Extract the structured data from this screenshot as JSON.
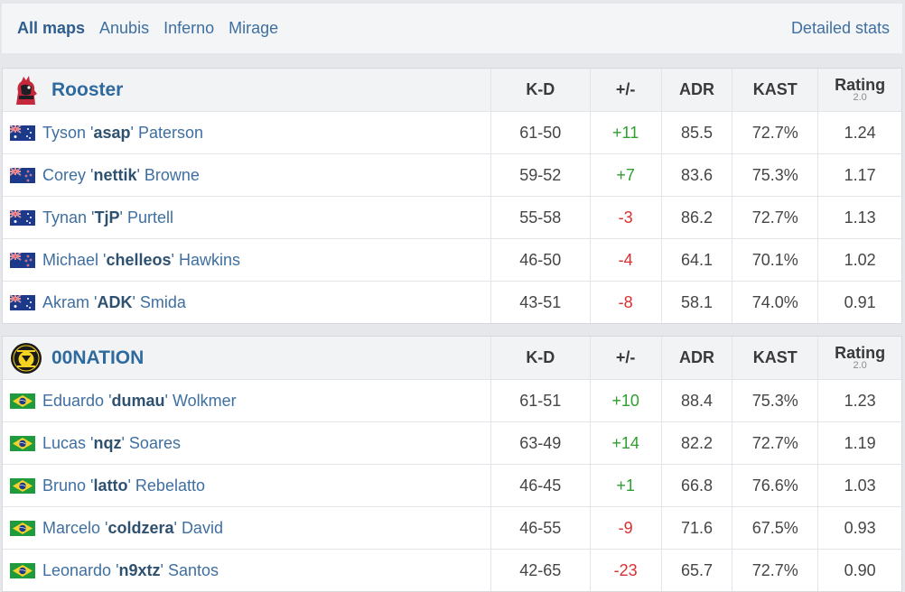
{
  "nav": {
    "tabs": [
      {
        "label": "All maps",
        "active": true
      },
      {
        "label": "Anubis",
        "active": false
      },
      {
        "label": "Inferno",
        "active": false
      },
      {
        "label": "Mirage",
        "active": false
      }
    ],
    "detailed_stats": "Detailed stats"
  },
  "columns": {
    "kd": "K-D",
    "pm": "+/-",
    "adr": "ADR",
    "kast": "KAST",
    "rating": "Rating",
    "rating_version": "2.0"
  },
  "colors": {
    "positive": "#2ea02e",
    "negative": "#d83030",
    "link": "#3f6fa0"
  },
  "teams": [
    {
      "name": "Rooster",
      "logo_icon": "rooster-logo",
      "players": [
        {
          "first": "Tyson",
          "nick": "asap",
          "last": "Paterson",
          "flag": "australia-flag",
          "kd": "61-50",
          "pm": "+11",
          "adr": "85.5",
          "kast": "72.7%",
          "rating": "1.24"
        },
        {
          "first": "Corey",
          "nick": "nettik",
          "last": "Browne",
          "flag": "new-zealand-flag",
          "kd": "59-52",
          "pm": "+7",
          "adr": "83.6",
          "kast": "75.3%",
          "rating": "1.17"
        },
        {
          "first": "Tynan",
          "nick": "TjP",
          "last": "Purtell",
          "flag": "australia-flag",
          "kd": "55-58",
          "pm": "-3",
          "adr": "86.2",
          "kast": "72.7%",
          "rating": "1.13"
        },
        {
          "first": "Michael",
          "nick": "chelleos",
          "last": "Hawkins",
          "flag": "new-zealand-flag",
          "kd": "46-50",
          "pm": "-4",
          "adr": "64.1",
          "kast": "70.1%",
          "rating": "1.02"
        },
        {
          "first": "Akram",
          "nick": "ADK",
          "last": "Smida",
          "flag": "australia-flag",
          "kd": "43-51",
          "pm": "-8",
          "adr": "58.1",
          "kast": "74.0%",
          "rating": "0.91"
        }
      ]
    },
    {
      "name": "00NATION",
      "logo_icon": "00nation-logo",
      "players": [
        {
          "first": "Eduardo",
          "nick": "dumau",
          "last": "Wolkmer",
          "flag": "brazil-flag",
          "kd": "61-51",
          "pm": "+10",
          "adr": "88.4",
          "kast": "75.3%",
          "rating": "1.23"
        },
        {
          "first": "Lucas",
          "nick": "nqz",
          "last": "Soares",
          "flag": "brazil-flag",
          "kd": "63-49",
          "pm": "+14",
          "adr": "82.2",
          "kast": "72.7%",
          "rating": "1.19"
        },
        {
          "first": "Bruno",
          "nick": "latto",
          "last": "Rebelatto",
          "flag": "brazil-flag",
          "kd": "46-45",
          "pm": "+1",
          "adr": "66.8",
          "kast": "76.6%",
          "rating": "1.03"
        },
        {
          "first": "Marcelo",
          "nick": "coldzera",
          "last": "David",
          "flag": "brazil-flag",
          "kd": "46-55",
          "pm": "-9",
          "adr": "71.6",
          "kast": "67.5%",
          "rating": "0.93"
        },
        {
          "first": "Leonardo",
          "nick": "n9xtz",
          "last": "Santos",
          "flag": "brazil-flag",
          "kd": "42-65",
          "pm": "-23",
          "adr": "65.7",
          "kast": "72.7%",
          "rating": "0.90"
        }
      ]
    }
  ]
}
